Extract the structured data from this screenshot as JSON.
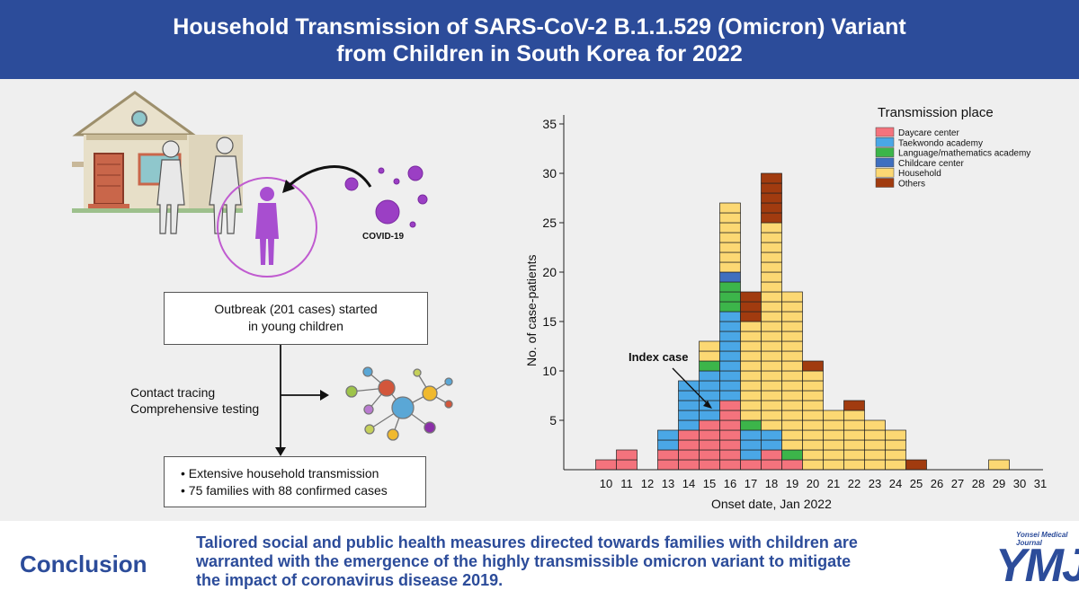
{
  "header": {
    "title_line1": "Household Transmission of SARS-CoV-2 B.1.1.529 (Omicron) Variant",
    "title_line2": "from Children in South Korea for 2022"
  },
  "illustration": {
    "covid_label": "COVID-19"
  },
  "flow": {
    "box1_line1": "Outbreak (201 cases) started",
    "box1_line2": "in young children",
    "contact_line1": "Contact tracing",
    "contact_line2": "Comprehensive testing",
    "bullet1": "• Extensive household transmission",
    "bullet2": "• 75 families with 88 confirmed cases"
  },
  "chart_data": {
    "type": "bar",
    "stacked": true,
    "xlabel": "Onset date, Jan 2022",
    "ylabel": "No. of case-patients",
    "ylim": [
      0,
      35
    ],
    "yticks": [
      5,
      10,
      15,
      20,
      25,
      30,
      35
    ],
    "categories": [
      "10",
      "11",
      "12",
      "13",
      "14",
      "15",
      "16",
      "17",
      "18",
      "19",
      "20",
      "21",
      "22",
      "23",
      "24",
      "25",
      "26",
      "27",
      "28",
      "29",
      "30",
      "31"
    ],
    "legend_title": "Transmission place",
    "annotation": "Index case",
    "series": [
      {
        "name": "Daycare center",
        "color": "#f4737d",
        "values": [
          1,
          2,
          0,
          2,
          4,
          5,
          7,
          1,
          2,
          1,
          0,
          0,
          0,
          0,
          0,
          0,
          0,
          0,
          0,
          0,
          0,
          0
        ]
      },
      {
        "name": "Taekwondo academy",
        "color": "#4aa7e6",
        "values": [
          0,
          0,
          0,
          2,
          5,
          5,
          9,
          3,
          2,
          0,
          0,
          0,
          0,
          0,
          0,
          0,
          0,
          0,
          0,
          0,
          0,
          0
        ]
      },
      {
        "name": "Language/mathematics academy",
        "color": "#3cb54a",
        "values": [
          0,
          0,
          0,
          0,
          0,
          1,
          3,
          1,
          0,
          1,
          0,
          0,
          0,
          0,
          0,
          0,
          0,
          0,
          0,
          0,
          0,
          0
        ]
      },
      {
        "name": "Childcare center",
        "color": "#3f6fbf",
        "values": [
          0,
          0,
          0,
          0,
          0,
          0,
          1,
          0,
          0,
          0,
          0,
          0,
          0,
          0,
          0,
          0,
          0,
          0,
          0,
          0,
          0,
          0
        ]
      },
      {
        "name": "Household",
        "color": "#fcd873",
        "values": [
          0,
          0,
          0,
          0,
          0,
          2,
          7,
          10,
          21,
          16,
          10,
          6,
          6,
          5,
          4,
          0,
          0,
          0,
          0,
          1,
          0,
          0
        ]
      },
      {
        "name": "Others",
        "color": "#a13b0f",
        "values": [
          0,
          0,
          0,
          0,
          0,
          0,
          0,
          3,
          5,
          0,
          1,
          0,
          1,
          0,
          0,
          1,
          0,
          0,
          0,
          0,
          0,
          0
        ]
      }
    ]
  },
  "conclusion": {
    "label": "Conclusion",
    "line1": "Taliored social and public health measures directed towards families with children are",
    "line2": "warranted with the emergence of the highly transmissible omicron variant to mitigate",
    "line3": "the impact of coronavirus disease 2019."
  },
  "journal": {
    "small": "Yonsei Medical Journal",
    "logo": "YMJ"
  }
}
